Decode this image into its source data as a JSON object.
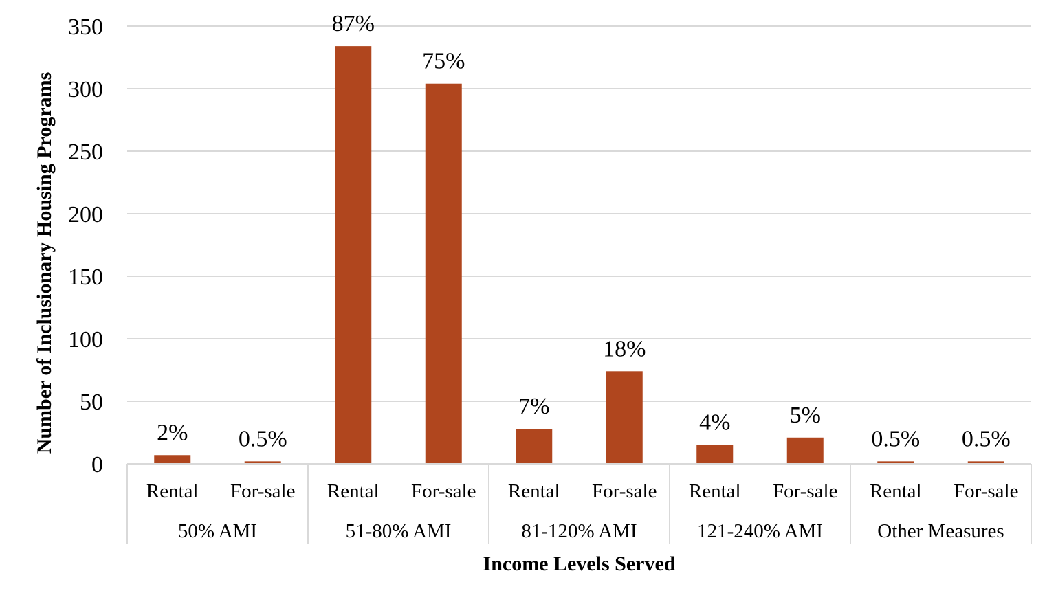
{
  "chart_data": {
    "type": "bar",
    "xlabel": "Income Levels Served",
    "ylabel": "Number of Inclusionary Housing Programs",
    "ylim": [
      0,
      350
    ],
    "yticks": [
      0,
      50,
      100,
      150,
      200,
      250,
      300,
      350
    ],
    "grid": true,
    "bar_color": "#b0461e",
    "groups": [
      "50% AMI",
      "51-80% AMI",
      "81-120% AMI",
      "121-240% AMI",
      "Other Measures"
    ],
    "categories": [
      "Rental",
      "For-sale",
      "Rental",
      "For-sale",
      "Rental",
      "For-sale",
      "Rental",
      "For-sale",
      "Rental",
      "For-sale"
    ],
    "values": [
      7,
      2,
      334,
      304,
      28,
      74,
      15,
      21,
      2,
      2
    ],
    "data_labels": [
      "2%",
      "0.5%",
      "87%",
      "75%",
      "7%",
      "18%",
      "4%",
      "5%",
      "0.5%",
      "0.5%"
    ]
  }
}
